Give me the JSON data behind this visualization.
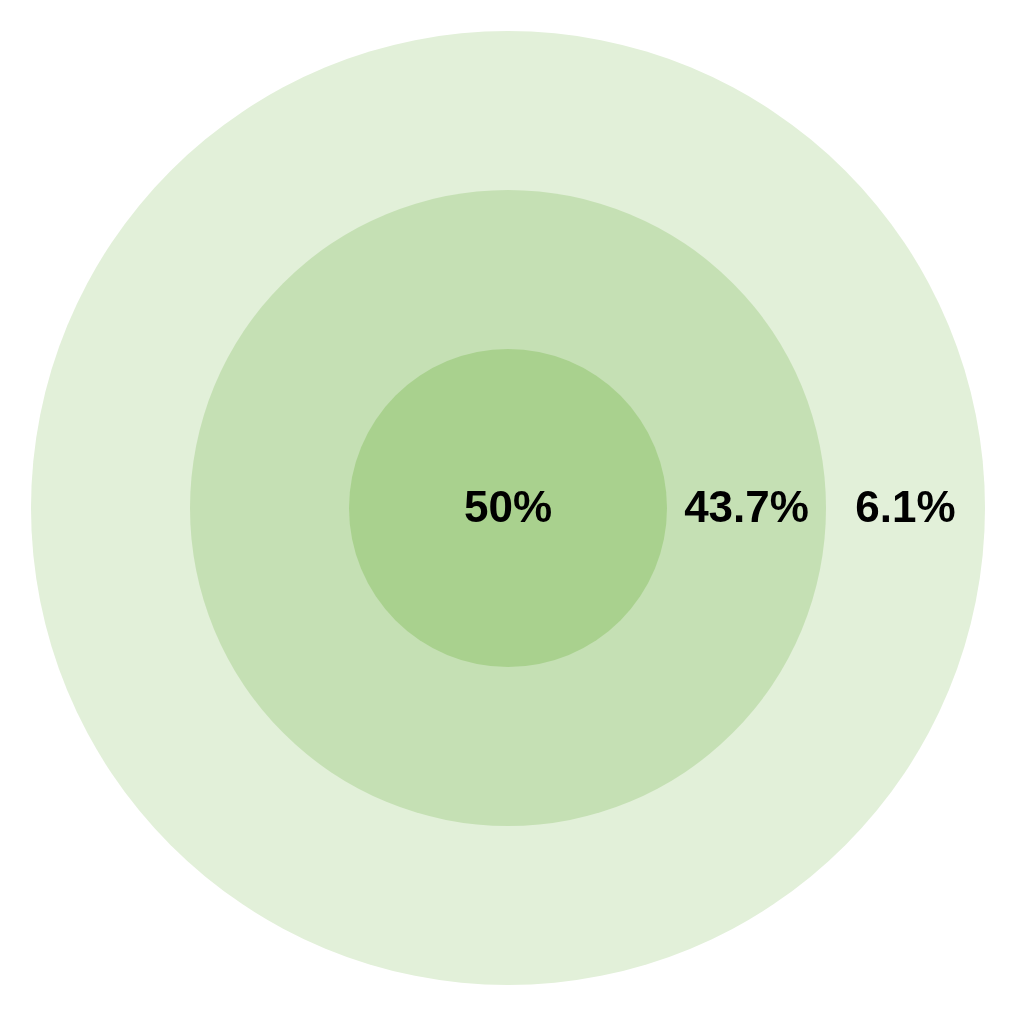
{
  "chart_data": {
    "type": "other",
    "categories": [
      null,
      null,
      null
    ],
    "values": [
      50,
      43.7,
      6.1
    ],
    "value_labels": [
      "50%",
      "43.7%",
      "6.1%"
    ],
    "colors": [
      "#a9d18e",
      "#c5e0b4",
      "#e2f0d9"
    ],
    "legend": false
  }
}
